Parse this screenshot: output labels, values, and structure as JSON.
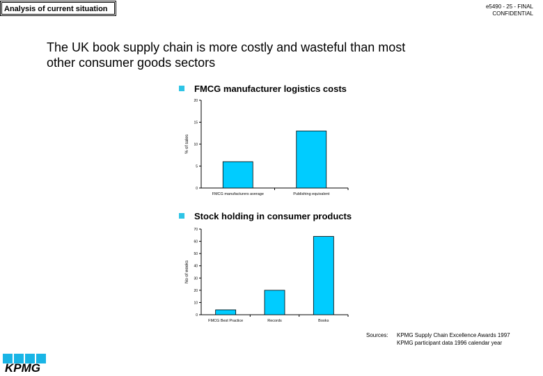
{
  "header": {
    "section_label": "Analysis of current situation",
    "doc_ref_line1": "e5490 - 25 - FINAL",
    "doc_ref_line2": "CONFIDENTIAL"
  },
  "headline": {
    "line1": "The UK book supply chain is more costly and wasteful than most",
    "line2": "other consumer goods sectors"
  },
  "bullets": [
    {
      "label": "FMCG manufacturer logistics costs"
    },
    {
      "label": "Stock holding in consumer products"
    }
  ],
  "sources": {
    "label": "Sources:",
    "lines": [
      "KPMG Supply Chain Excellence Awards 1997",
      "KPMG participant data 1996 calendar year"
    ]
  },
  "logo": {
    "text": "KPMG",
    "color": "#19b5e6"
  },
  "colors": {
    "bar": "#00ccff",
    "bullet": "#2ec4e6"
  },
  "chart_data": [
    {
      "type": "bar",
      "title": "FMCG manufacturer logistics costs",
      "categories": [
        "FMCG manufacturers average",
        "Publishing equivalent"
      ],
      "values": [
        6,
        13
      ],
      "xlabel": "",
      "ylabel": "% of sales",
      "ylim": [
        0,
        20
      ],
      "yticks": [
        0,
        5,
        10,
        15,
        20
      ],
      "grid": false
    },
    {
      "type": "bar",
      "title": "Stock holding in consumer products",
      "categories": [
        "FMCG Best Practice",
        "Records",
        "Books"
      ],
      "values": [
        4,
        20,
        64
      ],
      "xlabel": "",
      "ylabel": "No of weeks",
      "ylim": [
        0,
        70
      ],
      "yticks": [
        0,
        10,
        20,
        30,
        40,
        50,
        60,
        70
      ],
      "grid": false
    }
  ]
}
